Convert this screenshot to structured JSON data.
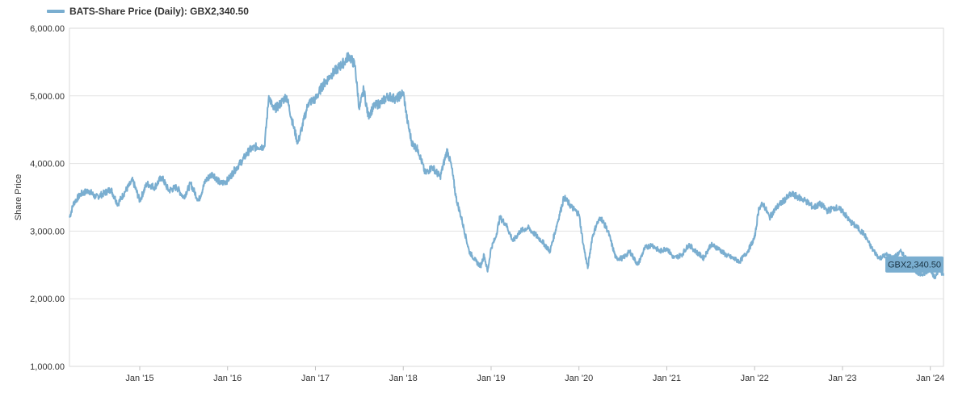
{
  "legend": {
    "label": "BATS-Share Price (Daily): GBX2,340.50",
    "color": "#7aaed0"
  },
  "chart_data": {
    "type": "line",
    "title": "",
    "ylabel": "Share Price",
    "xlabel": "",
    "ylim": [
      1000,
      6000
    ],
    "yticks": [
      1000,
      2000,
      3000,
      4000,
      5000,
      6000
    ],
    "ytick_labels": [
      "1,000.00",
      "2,000.00",
      "3,000.00",
      "4,000.00",
      "5,000.00",
      "6,000.00"
    ],
    "xlim": [
      2014.2,
      2024.15
    ],
    "xticks": [
      2015,
      2016,
      2017,
      2018,
      2019,
      2020,
      2021,
      2022,
      2023,
      2024
    ],
    "xtick_labels": [
      "Jan '15",
      "Jan '16",
      "Jan '17",
      "Jan '18",
      "Jan '19",
      "Jan '20",
      "Jan '21",
      "Jan '22",
      "Jan '23",
      "Jan '24"
    ],
    "grid": true,
    "legend_position": "top-left",
    "series": [
      {
        "name": "BATS-Share Price (Daily)",
        "color": "#7aaed0",
        "x": [
          2014.2,
          2014.25,
          2014.33,
          2014.42,
          2014.5,
          2014.58,
          2014.67,
          2014.75,
          2014.83,
          2014.92,
          2015.0,
          2015.08,
          2015.17,
          2015.25,
          2015.33,
          2015.42,
          2015.5,
          2015.58,
          2015.67,
          2015.75,
          2015.83,
          2015.92,
          2016.0,
          2016.08,
          2016.17,
          2016.25,
          2016.33,
          2016.42,
          2016.47,
          2016.52,
          2016.58,
          2016.67,
          2016.75,
          2016.8,
          2016.85,
          2016.92,
          2017.0,
          2017.08,
          2017.17,
          2017.25,
          2017.33,
          2017.38,
          2017.45,
          2017.5,
          2017.55,
          2017.6,
          2017.67,
          2017.75,
          2017.83,
          2017.92,
          2018.0,
          2018.05,
          2018.1,
          2018.17,
          2018.25,
          2018.33,
          2018.42,
          2018.5,
          2018.55,
          2018.6,
          2018.67,
          2018.75,
          2018.83,
          2018.88,
          2018.92,
          2018.96,
          2019.0,
          2019.05,
          2019.1,
          2019.17,
          2019.25,
          2019.33,
          2019.42,
          2019.5,
          2019.58,
          2019.67,
          2019.75,
          2019.83,
          2019.92,
          2020.0,
          2020.05,
          2020.1,
          2020.15,
          2020.2,
          2020.25,
          2020.33,
          2020.42,
          2020.5,
          2020.58,
          2020.67,
          2020.75,
          2020.83,
          2020.92,
          2021.0,
          2021.08,
          2021.17,
          2021.25,
          2021.33,
          2021.42,
          2021.5,
          2021.58,
          2021.67,
          2021.75,
          2021.83,
          2021.92,
          2022.0,
          2022.05,
          2022.1,
          2022.17,
          2022.25,
          2022.33,
          2022.42,
          2022.5,
          2022.58,
          2022.67,
          2022.75,
          2022.83,
          2022.92,
          2023.0,
          2023.08,
          2023.17,
          2023.25,
          2023.33,
          2023.42,
          2023.5,
          2023.58,
          2023.67,
          2023.75,
          2023.83,
          2023.92,
          2024.0,
          2024.05,
          2024.1,
          2024.15
        ],
        "values": [
          3200,
          3420,
          3550,
          3600,
          3500,
          3550,
          3620,
          3400,
          3580,
          3750,
          3450,
          3700,
          3650,
          3800,
          3600,
          3650,
          3500,
          3700,
          3450,
          3750,
          3850,
          3700,
          3750,
          3900,
          4050,
          4200,
          4250,
          4250,
          5000,
          4800,
          4850,
          5000,
          4550,
          4300,
          4550,
          4900,
          4950,
          5150,
          5300,
          5400,
          5500,
          5600,
          5450,
          4800,
          5100,
          4700,
          4850,
          4900,
          5000,
          4950,
          5050,
          4600,
          4300,
          4200,
          3850,
          3950,
          3800,
          4200,
          3950,
          3500,
          3150,
          2700,
          2550,
          2480,
          2650,
          2400,
          2750,
          2900,
          3200,
          3100,
          2850,
          3000,
          3050,
          2950,
          2850,
          2700,
          3100,
          3500,
          3350,
          3250,
          2800,
          2450,
          2900,
          3100,
          3200,
          3000,
          2600,
          2600,
          2700,
          2500,
          2750,
          2800,
          2700,
          2750,
          2600,
          2650,
          2800,
          2700,
          2600,
          2800,
          2750,
          2650,
          2600,
          2550,
          2700,
          2900,
          3350,
          3400,
          3200,
          3350,
          3450,
          3550,
          3500,
          3450,
          3350,
          3400,
          3300,
          3350,
          3300,
          3150,
          3050,
          2950,
          2750,
          2600,
          2650,
          2600,
          2700,
          2550,
          2400,
          2350,
          2450,
          2300,
          2450,
          2340
        ]
      }
    ],
    "last_value_label": "GBX2,340.50"
  }
}
